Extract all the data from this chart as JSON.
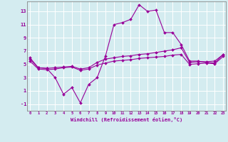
{
  "xlabel": "Windchill (Refroidissement éolien,°C)",
  "background_color": "#d4ecf0",
  "line_color": "#990099",
  "x_ticks": [
    0,
    1,
    2,
    3,
    4,
    5,
    6,
    7,
    8,
    9,
    10,
    11,
    12,
    13,
    14,
    15,
    16,
    17,
    18,
    19,
    20,
    21,
    22,
    23
  ],
  "y_ticks": [
    -1,
    1,
    3,
    5,
    7,
    9,
    11,
    13
  ],
  "xlim": [
    -0.3,
    23.3
  ],
  "ylim": [
    -2.0,
    14.5
  ],
  "curve1_x": [
    0,
    1,
    2,
    3,
    4,
    5,
    6,
    7,
    8,
    9,
    10,
    11,
    12,
    13,
    14,
    15,
    16,
    17,
    18,
    19,
    20,
    21,
    22,
    23
  ],
  "curve1_y": [
    6.0,
    4.5,
    4.4,
    3.0,
    0.5,
    1.5,
    -0.8,
    2.0,
    3.0,
    6.3,
    11.0,
    11.3,
    11.8,
    14.0,
    13.0,
    13.2,
    9.8,
    9.8,
    8.0,
    5.5,
    5.5,
    5.3,
    5.2,
    6.5
  ],
  "curve2_x": [
    0,
    1,
    2,
    3,
    4,
    5,
    6,
    7,
    8,
    9,
    10,
    11,
    12,
    13,
    14,
    15,
    16,
    17,
    18,
    19,
    20,
    21,
    22,
    23
  ],
  "curve2_y": [
    5.8,
    4.5,
    4.4,
    4.5,
    4.6,
    4.7,
    4.3,
    4.5,
    5.3,
    5.8,
    6.0,
    6.2,
    6.3,
    6.5,
    6.6,
    6.8,
    7.0,
    7.2,
    7.5,
    5.3,
    5.4,
    5.4,
    5.5,
    6.5
  ],
  "curve3_x": [
    0,
    1,
    2,
    3,
    4,
    5,
    6,
    7,
    8,
    9,
    10,
    11,
    12,
    13,
    14,
    15,
    16,
    17,
    18,
    19,
    20,
    21,
    22,
    23
  ],
  "curve3_y": [
    5.5,
    4.3,
    4.2,
    4.3,
    4.5,
    4.6,
    4.1,
    4.3,
    4.9,
    5.2,
    5.5,
    5.6,
    5.7,
    5.9,
    6.0,
    6.1,
    6.2,
    6.4,
    6.5,
    5.0,
    5.1,
    5.2,
    5.1,
    6.2
  ]
}
